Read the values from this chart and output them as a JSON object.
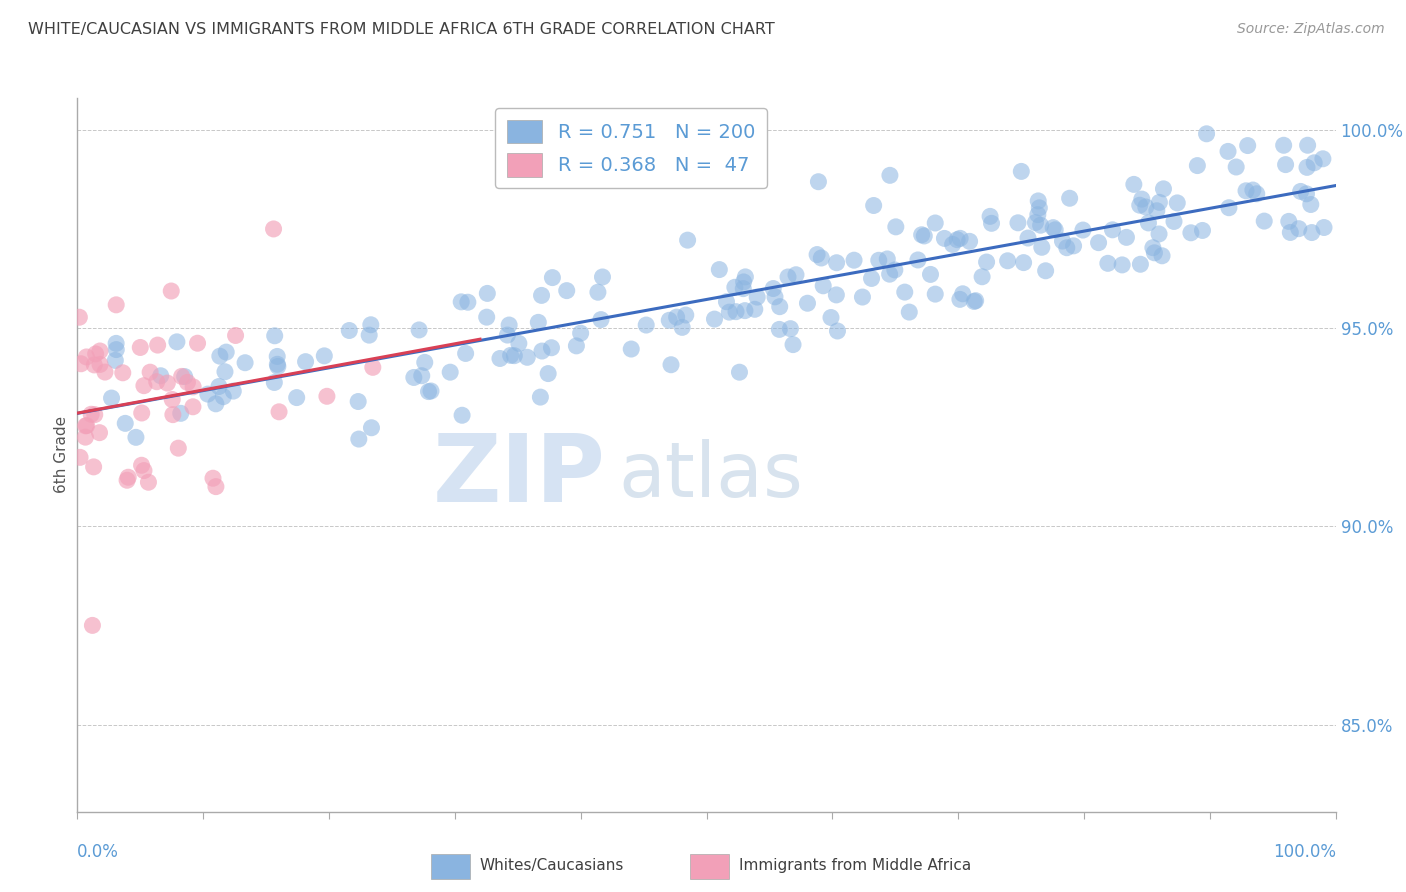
{
  "title": "WHITE/CAUCASIAN VS IMMIGRANTS FROM MIDDLE AFRICA 6TH GRADE CORRELATION CHART",
  "source": "Source: ZipAtlas.com",
  "ylabel": "6th Grade",
  "ytick_values": [
    0.85,
    0.9,
    0.95,
    1.0
  ],
  "ytick_labels": [
    "85.0%",
    "90.0%",
    "95.0%",
    "100.0%"
  ],
  "xmin": 0.0,
  "xmax": 1.0,
  "ymin": 0.828,
  "ymax": 1.008,
  "blue_R": 0.751,
  "blue_N": 200,
  "pink_R": 0.368,
  "pink_N": 47,
  "blue_color": "#8ab4e0",
  "pink_color": "#f2a0b8",
  "blue_line_color": "#3c6bbf",
  "pink_line_color": "#d94055",
  "legend_blue_label": "Whites/Caucasians",
  "legend_pink_label": "Immigrants from Middle Africa",
  "watermark_zip": "ZIP",
  "watermark_atlas": "atlas",
  "background_color": "#ffffff",
  "grid_color": "#c8c8c8",
  "title_color": "#404040",
  "axis_tick_color": "#5b9bd5",
  "blue_seed": 99,
  "pink_seed": 77
}
